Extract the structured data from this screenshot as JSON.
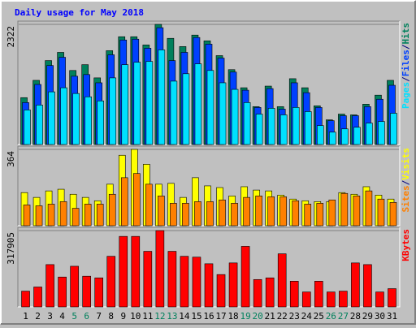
{
  "chart_data": {
    "type": "bar",
    "title": "Daily usage for May 2018",
    "categories": [
      "1",
      "2",
      "3",
      "4",
      "5",
      "6",
      "7",
      "8",
      "9",
      "10",
      "11",
      "12",
      "13",
      "14",
      "15",
      "16",
      "17",
      "18",
      "19",
      "20",
      "21",
      "22",
      "23",
      "24",
      "25",
      "26",
      "27",
      "28",
      "29",
      "30",
      "31"
    ],
    "category_colors": [
      "#000000",
      "#000000",
      "#000000",
      "#000000",
      "#00805c",
      "#00805c",
      "#000000",
      "#000000",
      "#000000",
      "#000000",
      "#000000",
      "#00805c",
      "#00805c",
      "#000000",
      "#000000",
      "#000000",
      "#000000",
      "#000000",
      "#00805c",
      "#00805c",
      "#000000",
      "#000000",
      "#000000",
      "#000000",
      "#000000",
      "#00805c",
      "#00805c",
      "#000000",
      "#000000",
      "#000000",
      "#000000"
    ],
    "legend_separator": "/",
    "panels": [
      {
        "ylim": [
          0,
          2322
        ],
        "yticks": [
          2322
        ],
        "series": [
          {
            "name": "Hits",
            "color": "#00805c",
            "values": [
              906,
              1240,
              1622,
              1781,
              1431,
              1543,
              1288,
              1813,
              2083,
              2083,
              1924,
              2322,
              2052,
              1893,
              2115,
              2004,
              1718,
              1447,
              1097,
              732,
              1129,
              732,
              1272,
              1097,
              748,
              477,
              588,
              573,
              779,
              954,
              1240
            ]
          },
          {
            "name": "Files",
            "color": "#0040ff",
            "values": [
              811,
              1161,
              1527,
              1686,
              1320,
              1352,
              1193,
              1734,
              2020,
              2036,
              1861,
              2258,
              1622,
              1781,
              2068,
              1940,
              1670,
              1400,
              1050,
              716,
              1081,
              684,
              1193,
              1002,
              716,
              461,
              557,
              557,
              732,
              875,
              1145
            ]
          },
          {
            "name": "Pages",
            "color": "#00e0ff",
            "values": [
              668,
              763,
              1018,
              1097,
              986,
              922,
              843,
              1288,
              1543,
              1590,
              1606,
              1829,
              1225,
              1368,
              1559,
              1431,
              1193,
              1066,
              811,
              588,
              700,
              573,
              716,
              636,
              366,
              239,
              302,
              334,
              414,
              445,
              604
            ]
          }
        ]
      },
      {
        "ylim": [
          0,
          364
        ],
        "yticks": [
          364
        ],
        "series": [
          {
            "name": "Visits",
            "color": "#ffff00",
            "values": [
              158,
              135,
              166,
              174,
              150,
              135,
              119,
              198,
              336,
              364,
              293,
              198,
              202,
              135,
              229,
              190,
              182,
              142,
              186,
              170,
              166,
              146,
              127,
              119,
              115,
              115,
              158,
              150,
              186,
              146,
              127
            ]
          },
          {
            "name": "Sites",
            "color": "#ff8000",
            "values": [
              99,
              95,
              103,
              115,
              83,
              103,
              103,
              150,
              229,
              249,
              198,
              142,
              107,
              107,
              115,
              115,
              123,
              107,
              135,
              142,
              138,
              138,
              119,
              103,
              107,
              123,
              154,
              142,
              166,
              127,
              111
            ]
          }
        ]
      },
      {
        "ylim": [
          0,
          317905
        ],
        "yticks": [
          317905
        ],
        "series": [
          {
            "name": "KBytes",
            "color": "#ff0000",
            "values": [
              65655,
              82932,
              176230,
              124398,
              169319,
              127853,
              120942,
              210785,
              293715,
              293715,
              231518,
              317905,
              231518,
              210785,
              207330,
              179686,
              134764,
              183141,
              252251,
              114032,
              120942,
              221151,
              107120,
              62199,
              107120,
              62199,
              65655,
              183141,
              176230,
              62199,
              76020
            ]
          }
        ]
      }
    ]
  }
}
